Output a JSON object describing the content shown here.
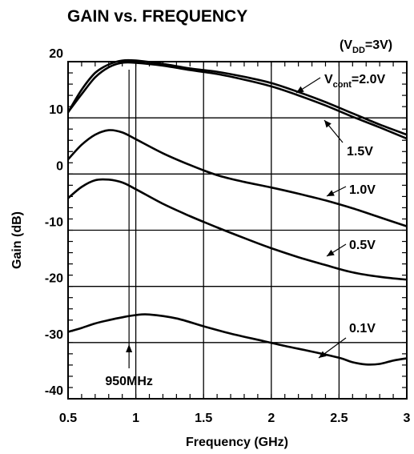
{
  "chart_data": {
    "type": "line",
    "title": "GAIN vs. FREQUENCY",
    "condition": {
      "prefix": "(V",
      "sub": "DD",
      "suffix": "=3V)"
    },
    "xlabel": "Frequency (GHz)",
    "ylabel": "Gain (dB)",
    "xlim": [
      0.5,
      3
    ],
    "ylim": [
      -40,
      20
    ],
    "xticks": [
      "0.5",
      "1",
      "1.5",
      "2",
      "2.5",
      "3"
    ],
    "yticks": [
      "20",
      "10",
      "0",
      "-10",
      "-20",
      "-30",
      "-40"
    ],
    "grid": true,
    "marker": {
      "x": 0.95,
      "label": "950MHz"
    },
    "series": [
      {
        "name": "V_cont=2.0V",
        "x": [
          0.5,
          0.6,
          0.7,
          0.8,
          0.9,
          1.0,
          1.2,
          1.4,
          1.6,
          1.8,
          2.0,
          2.2,
          2.4,
          2.6,
          2.8,
          3.0
        ],
        "y": [
          11,
          15,
          18,
          19.5,
          20.2,
          20.2,
          19.6,
          18.8,
          18.2,
          17.3,
          16.2,
          14.6,
          12.8,
          10.8,
          8.8,
          7.0
        ]
      },
      {
        "name": "1.5V",
        "x": [
          0.5,
          0.6,
          0.7,
          0.8,
          0.9,
          1.0,
          1.2,
          1.4,
          1.6,
          1.8,
          2.0,
          2.2,
          2.4,
          2.6,
          2.8,
          3.0
        ],
        "y": [
          11,
          14.2,
          17.2,
          19,
          19.8,
          19.8,
          19.3,
          18.5,
          17.8,
          16.8,
          15.6,
          14.0,
          12.2,
          10.2,
          8.3,
          6.3
        ]
      },
      {
        "name": "1.0V",
        "x": [
          0.5,
          0.6,
          0.7,
          0.8,
          0.9,
          1.0,
          1.2,
          1.4,
          1.6,
          1.8,
          2.0,
          2.2,
          2.4,
          2.6,
          2.8,
          3.0
        ],
        "y": [
          2.6,
          5.2,
          7.0,
          7.8,
          7.4,
          6.2,
          3.7,
          1.6,
          -0.2,
          -1.4,
          -2.4,
          -3.5,
          -4.7,
          -6.1,
          -7.7,
          -9.3
        ]
      },
      {
        "name": "0.5V",
        "x": [
          0.5,
          0.6,
          0.7,
          0.8,
          0.9,
          1.0,
          1.2,
          1.4,
          1.6,
          1.8,
          2.0,
          2.2,
          2.4,
          2.6,
          2.8,
          3.0
        ],
        "y": [
          -4.3,
          -2.3,
          -1.1,
          -1.0,
          -1.5,
          -2.7,
          -5.3,
          -7.5,
          -9.5,
          -11.4,
          -13.2,
          -14.8,
          -16.2,
          -17.5,
          -18.3,
          -18.8
        ]
      },
      {
        "name": "0.1V",
        "x": [
          0.5,
          0.6,
          0.7,
          0.8,
          0.9,
          1.0,
          1.1,
          1.3,
          1.5,
          1.7,
          1.9,
          2.1,
          2.3,
          2.5,
          2.6,
          2.7,
          2.8,
          2.9,
          3.0
        ],
        "y": [
          -28.1,
          -27.4,
          -26.6,
          -26.0,
          -25.5,
          -25.1,
          -25.0,
          -25.7,
          -27.1,
          -28.4,
          -29.5,
          -30.6,
          -31.6,
          -32.7,
          -33.5,
          -33.9,
          -33.8,
          -33.2,
          -32.8
        ]
      }
    ],
    "labels": [
      {
        "prefix": "V",
        "sub": "cont",
        "suffix": "=2.0V"
      },
      {
        "prefix": "1.5V",
        "sub": "",
        "suffix": ""
      },
      {
        "prefix": "1.0V",
        "sub": "",
        "suffix": ""
      },
      {
        "prefix": "0.5V",
        "sub": "",
        "suffix": ""
      },
      {
        "prefix": "0.1V",
        "sub": "",
        "suffix": ""
      }
    ]
  }
}
